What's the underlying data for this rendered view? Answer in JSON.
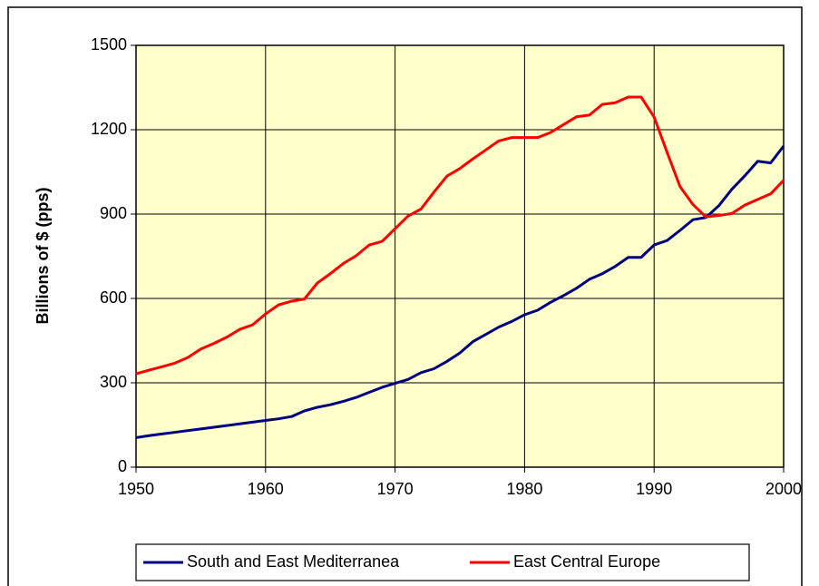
{
  "chart_data": {
    "type": "line",
    "ylabel": "Billions of $ (pps)",
    "x": [
      1950,
      1951,
      1952,
      1953,
      1954,
      1955,
      1956,
      1957,
      1958,
      1959,
      1960,
      1961,
      1962,
      1963,
      1964,
      1965,
      1966,
      1967,
      1968,
      1969,
      1970,
      1971,
      1972,
      1973,
      1974,
      1975,
      1976,
      1977,
      1978,
      1979,
      1980,
      1981,
      1982,
      1983,
      1984,
      1985,
      1986,
      1987,
      1988,
      1989,
      1990,
      1991,
      1992,
      1993,
      1994,
      1995,
      1996,
      1997,
      1998,
      1999,
      2000
    ],
    "series": [
      {
        "name": "South and East Mediterranea",
        "color": "#000080",
        "values": [
          105,
          112,
          118,
          124,
          130,
          136,
          142,
          148,
          154,
          160,
          166,
          172,
          180,
          200,
          213,
          222,
          234,
          248,
          266,
          284,
          298,
          312,
          336,
          350,
          376,
          406,
          446,
          472,
          498,
          518,
          542,
          558,
          586,
          610,
          636,
          668,
          688,
          714,
          746,
          746,
          790,
          806,
          842,
          880,
          888,
          930,
          988,
          1036,
          1088,
          1082,
          1142
        ]
      },
      {
        "name": "East Central Europe",
        "color": "#ff0000",
        "values": [
          332,
          345,
          357,
          370,
          390,
          420,
          440,
          462,
          490,
          506,
          545,
          577,
          590,
          598,
          655,
          688,
          724,
          752,
          790,
          803,
          848,
          893,
          918,
          978,
          1035,
          1062,
          1096,
          1128,
          1160,
          1172,
          1172,
          1172,
          1190,
          1218,
          1246,
          1252,
          1290,
          1296,
          1316,
          1316,
          1245,
          1120,
          998,
          934,
          890,
          895,
          902,
          932,
          952,
          972,
          1020
        ]
      }
    ],
    "xlim": [
      1950,
      2000
    ],
    "xticks": [
      1950,
      1960,
      1970,
      1980,
      1990,
      2000
    ],
    "ylim": [
      0,
      1500
    ],
    "yticks": [
      0,
      300,
      600,
      900,
      1200,
      1500
    ],
    "grid": true,
    "legend": "bottom",
    "plot_background": "#ffffcc"
  }
}
